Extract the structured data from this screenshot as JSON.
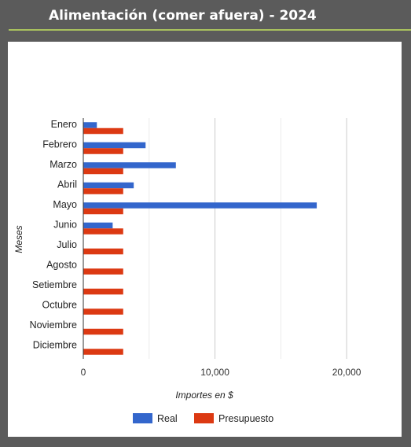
{
  "header": {
    "title": "Alimentación (comer afuera) - 2024"
  },
  "chart_data": {
    "type": "bar",
    "orientation": "horizontal",
    "categories": [
      "Enero",
      "Febrero",
      "Marzo",
      "Abril",
      "Mayo",
      "Junio",
      "Julio",
      "Agosto",
      "Setiembre",
      "Octubre",
      "Noviembre",
      "Diciembre"
    ],
    "series": [
      {
        "name": "Real",
        "color": "#3366cc",
        "values": [
          1000,
          4700,
          7000,
          3800,
          17700,
          2200,
          0,
          0,
          0,
          0,
          0,
          0
        ]
      },
      {
        "name": "Presupuesto",
        "color": "#dc3912",
        "values": [
          3000,
          3000,
          3000,
          3000,
          3000,
          3000,
          3000,
          3000,
          3000,
          3000,
          3000,
          3000
        ]
      }
    ],
    "xlabel": "Importes en $",
    "ylabel": "Meses",
    "xlim": [
      0,
      22500
    ],
    "xticks": [
      0,
      10000,
      20000
    ],
    "xtick_labels": [
      "0",
      "10,000",
      "20,000"
    ],
    "grid": true,
    "legend_position": "bottom"
  }
}
